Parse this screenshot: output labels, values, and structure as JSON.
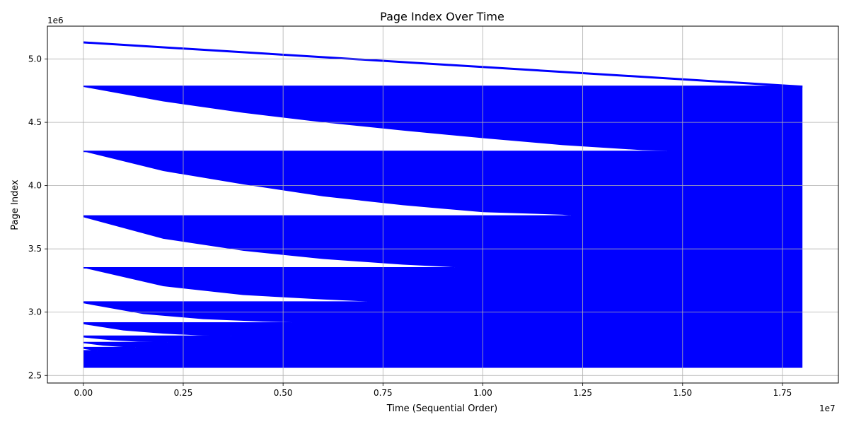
{
  "chart_data": {
    "type": "area",
    "title": "Page Index Over Time",
    "xlabel": "Time (Sequential Order)",
    "ylabel": "Page Index",
    "x_offset_label": "1e7",
    "y_offset_label": "1e6",
    "xlim": [
      -0.09,
      1.89
    ],
    "ylim": [
      2.44,
      5.26
    ],
    "x_ticks": [
      0.0,
      0.25,
      0.5,
      0.75,
      1.0,
      1.25,
      1.5,
      1.75
    ],
    "x_tick_labels": [
      "0.00",
      "0.25",
      "0.50",
      "0.75",
      "1.00",
      "1.25",
      "1.50",
      "1.75"
    ],
    "y_ticks": [
      2.5,
      3.0,
      3.5,
      4.0,
      4.5,
      5.0
    ],
    "y_tick_labels": [
      "2.5",
      "3.0",
      "3.5",
      "4.0",
      "4.5",
      "5.0"
    ],
    "grid": true,
    "color": "#0000ff",
    "top_band": {
      "x": [
        0.0,
        1.8
      ],
      "upper": [
        5.14,
        4.79
      ],
      "thickness": 0.012
    },
    "main_block": {
      "x": [
        0.0,
        1.8
      ],
      "y": [
        2.56,
        4.79
      ]
    },
    "wedges": [
      {
        "x0": 0.0,
        "x1": 1.46,
        "y_top": 4.27,
        "y_start": 4.78,
        "x": [
          0.0,
          0.2,
          0.4,
          0.6,
          0.8,
          1.0,
          1.2,
          1.4,
          1.46
        ],
        "y": [
          4.78,
          4.665,
          4.575,
          4.5,
          4.435,
          4.375,
          4.32,
          4.28,
          4.275
        ]
      },
      {
        "x0": 0.0,
        "x1": 1.22,
        "y_top": 3.76,
        "y_start": 4.27,
        "x": [
          0.0,
          0.2,
          0.4,
          0.6,
          0.8,
          1.0,
          1.2,
          1.22
        ],
        "y": [
          4.27,
          4.115,
          4.01,
          3.915,
          3.845,
          3.79,
          3.77,
          3.765
        ]
      },
      {
        "x0": 0.0,
        "x1": 0.93,
        "y_top": 3.35,
        "y_start": 3.75,
        "x": [
          0.0,
          0.2,
          0.4,
          0.6,
          0.8,
          0.93
        ],
        "y": [
          3.75,
          3.58,
          3.485,
          3.42,
          3.375,
          3.355
        ]
      },
      {
        "x0": 0.0,
        "x1": 0.71,
        "y_top": 3.08,
        "y_start": 3.35,
        "x": [
          0.0,
          0.2,
          0.4,
          0.6,
          0.71
        ],
        "y": [
          3.35,
          3.205,
          3.135,
          3.1,
          3.085
        ]
      },
      {
        "x0": 0.0,
        "x1": 0.52,
        "y_top": 2.915,
        "y_start": 3.07,
        "x": [
          0.0,
          0.15,
          0.3,
          0.45,
          0.52
        ],
        "y": [
          3.07,
          2.985,
          2.945,
          2.925,
          2.92
        ]
      },
      {
        "x0": 0.0,
        "x1": 0.37,
        "y_top": 2.81,
        "y_start": 2.905,
        "x": [
          0.0,
          0.1,
          0.2,
          0.3,
          0.37
        ],
        "y": [
          2.905,
          2.855,
          2.83,
          2.815,
          2.812
        ]
      },
      {
        "x0": 0.0,
        "x1": 0.21,
        "y_top": 2.76,
        "y_start": 2.8,
        "x": [
          0.0,
          0.07,
          0.14,
          0.21
        ],
        "y": [
          2.8,
          2.778,
          2.766,
          2.762
        ]
      },
      {
        "x0": 0.0,
        "x1": 0.13,
        "y_top": 2.72,
        "y_start": 2.755,
        "x": [
          0.0,
          0.05,
          0.1,
          0.13
        ],
        "y": [
          2.755,
          2.735,
          2.725,
          2.722
        ]
      },
      {
        "x0": 0.0,
        "x1": 0.035,
        "y_top": 2.695,
        "y_start": 2.71,
        "x": [
          0.0,
          0.02,
          0.035
        ],
        "y": [
          2.71,
          2.7,
          2.697
        ]
      }
    ]
  }
}
